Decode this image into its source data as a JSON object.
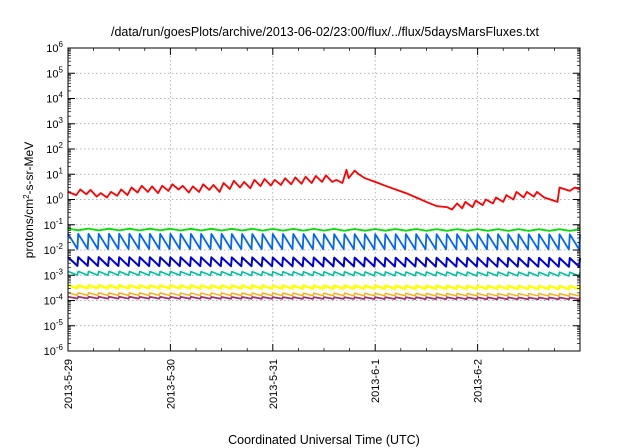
{
  "chart_data": {
    "type": "line",
    "title": "/data/run/goesPlots/archive/2013-06-02/23:00/flux/../flux/5daysMarsFluxes.txt",
    "xlabel": "Coordinated Universal Time (UTC)",
    "ylabel": "protons/cm²-s-sr-MeV",
    "y_scale": "log",
    "ylim": [
      1e-06,
      1000000.0
    ],
    "xlim_days": [
      0,
      5
    ],
    "grid": true,
    "x_ticks": [
      {
        "day": 0,
        "label": "2013-5-29"
      },
      {
        "day": 1,
        "label": "2013-5-30"
      },
      {
        "day": 2,
        "label": "2013-5-31"
      },
      {
        "day": 3,
        "label": "2013-6-1"
      },
      {
        "day": 4,
        "label": "2013-6-2"
      }
    ],
    "y_ticks": [
      {
        "exp": -6,
        "base": "10",
        "sup": "-6"
      },
      {
        "exp": -5,
        "base": "10",
        "sup": "-5"
      },
      {
        "exp": -4,
        "base": "10",
        "sup": "-4"
      },
      {
        "exp": -3,
        "base": "10",
        "sup": "-3"
      },
      {
        "exp": -2,
        "base": "10",
        "sup": "-2"
      },
      {
        "exp": -1,
        "base": "10",
        "sup": "-1"
      },
      {
        "exp": 0,
        "base": "10",
        "sup": "0"
      },
      {
        "exp": 1,
        "base": "10",
        "sup": "1"
      },
      {
        "exp": 2,
        "base": "10",
        "sup": "2"
      },
      {
        "exp": 3,
        "base": "10",
        "sup": "3"
      },
      {
        "exp": 4,
        "base": "10",
        "sup": "4"
      },
      {
        "exp": 5,
        "base": "10",
        "sup": "5"
      },
      {
        "exp": 6,
        "base": "10",
        "sup": "6"
      }
    ],
    "series": [
      {
        "color": "#ff0000",
        "x": [
          0,
          0.08,
          0.12,
          0.18,
          0.22,
          0.28,
          0.32,
          0.38,
          0.42,
          0.48,
          0.52,
          0.58,
          0.62,
          0.68,
          0.72,
          0.78,
          0.82,
          0.88,
          0.92,
          0.98,
          1.02,
          1.08,
          1.12,
          1.18,
          1.22,
          1.28,
          1.32,
          1.38,
          1.42,
          1.48,
          1.52,
          1.58,
          1.62,
          1.68,
          1.72,
          1.78,
          1.82,
          1.88,
          1.92,
          1.98,
          2.02,
          2.08,
          2.12,
          2.18,
          2.22,
          2.28,
          2.32,
          2.38,
          2.42,
          2.48,
          2.52,
          2.58,
          2.62,
          2.68,
          2.72,
          2.74,
          2.8,
          2.84,
          2.9,
          3.0,
          3.1,
          3.2,
          3.3,
          3.4,
          3.5,
          3.6,
          3.7,
          3.75,
          3.8,
          3.85,
          3.88,
          3.95,
          3.98,
          4.05,
          4.08,
          4.15,
          4.18,
          4.25,
          4.28,
          4.35,
          4.38,
          4.45,
          4.48,
          4.55,
          4.58,
          4.65,
          4.78,
          4.8,
          4.9,
          4.95,
          5.0
        ],
        "y": [
          2,
          1.5,
          2.5,
          1.6,
          2.4,
          1.3,
          1.8,
          1.2,
          2.0,
          1.4,
          2.5,
          1.5,
          3.0,
          1.9,
          3.5,
          2.0,
          3.3,
          1.8,
          3.5,
          2.2,
          4.0,
          2.5,
          3.5,
          1.9,
          3.3,
          2.0,
          4.0,
          2.4,
          3.8,
          2.0,
          4.5,
          2.6,
          5.5,
          3.0,
          5.0,
          2.8,
          6.0,
          3.4,
          6.5,
          3.6,
          6.0,
          3.8,
          7.0,
          4.0,
          7.5,
          4.2,
          8.0,
          4.5,
          8.5,
          5.0,
          9.0,
          5.0,
          6.0,
          4.5,
          15,
          7,
          14,
          10,
          7,
          5,
          3.5,
          2.5,
          1.8,
          1.2,
          0.8,
          0.55,
          0.5,
          0.4,
          0.7,
          0.45,
          0.8,
          0.5,
          0.9,
          0.6,
          1.0,
          0.7,
          1.2,
          0.8,
          1.5,
          1.0,
          2.0,
          1.2,
          2.0,
          1.3,
          2.0,
          1.2,
          0.8,
          3.0,
          2.2,
          3.0,
          2.5
        ],
        "w": 1.8
      },
      {
        "color": "#00e000",
        "start": 0.065,
        "amp": 0.85,
        "sawtooth": false,
        "trend": 0.6,
        "w": 1.8
      },
      {
        "color": "#0066ff",
        "start": 0.022,
        "amp": 0.6,
        "sawtooth": true,
        "trend": 0.55,
        "w": 1.8
      },
      {
        "color": "#0000dd",
        "start": 0.0035,
        "amp": 0.35,
        "sawtooth": true,
        "trend": 0.9,
        "w": 2.0
      },
      {
        "color": "#00c0a0",
        "start": 0.0012,
        "amp": 0.15,
        "sawtooth": true,
        "trend": 0.9,
        "w": 1.6
      },
      {
        "color": "#ffff00",
        "start": 0.00035,
        "amp": 0.12,
        "sawtooth": true,
        "trend": 0.8,
        "w": 2.4
      },
      {
        "color": "#ffaa00",
        "start": 0.00018,
        "amp": 0.1,
        "sawtooth": true,
        "trend": 0.8,
        "w": 1.4
      },
      {
        "color": "#a03070",
        "start": 0.00013,
        "amp": 0.07,
        "sawtooth": true,
        "trend": 0.8,
        "w": 1.8
      }
    ]
  }
}
